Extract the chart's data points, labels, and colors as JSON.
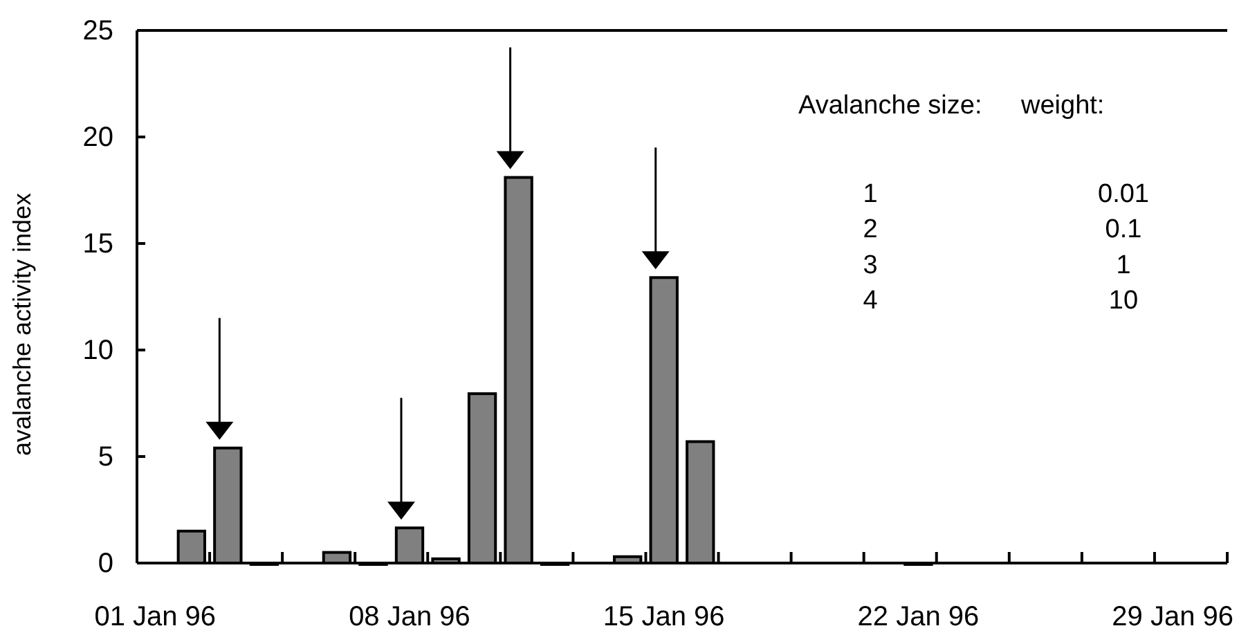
{
  "chart_data": {
    "type": "bar",
    "ylabel": "avalanche activity index",
    "categories": [
      "01 Jan 96",
      null,
      null,
      null,
      null,
      null,
      null,
      "08 Jan 96",
      null,
      null,
      null,
      null,
      null,
      null,
      "15 Jan 96",
      null,
      null,
      null,
      null,
      null,
      null,
      "22 Jan 96",
      null,
      null,
      null,
      null,
      null,
      null,
      "29 Jan 96",
      null
    ],
    "values": [
      null,
      1.5,
      5.4,
      0,
      null,
      0.5,
      0,
      1.65,
      0.2,
      7.95,
      18.1,
      0,
      null,
      0.3,
      13.4,
      5.7,
      null,
      null,
      null,
      null,
      null,
      0,
      null,
      null,
      null,
      null,
      null,
      null,
      null,
      null
    ],
    "color": "#808080",
    "ylim": [
      0,
      25
    ],
    "yticks": [
      0,
      5,
      10,
      15,
      20,
      25
    ],
    "grid": false,
    "annotations": [
      "Avalanche size:",
      "weight:",
      "1",
      "0.01",
      "2",
      "0.1",
      "3",
      "1",
      "4",
      "10"
    ]
  }
}
